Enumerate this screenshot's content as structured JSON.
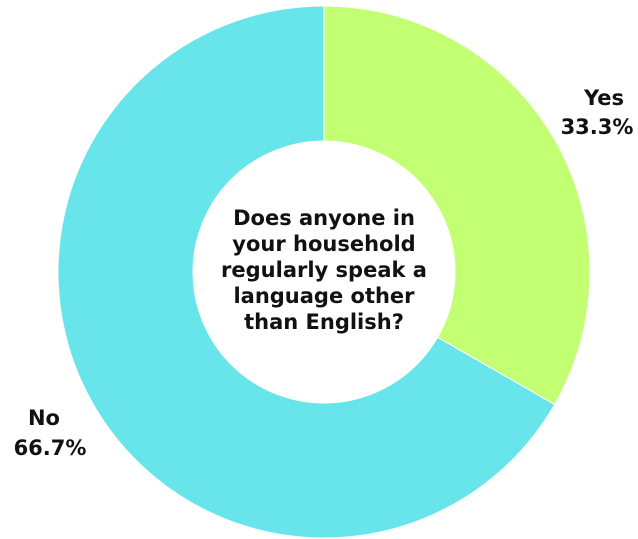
{
  "chart_data": {
    "type": "pie",
    "title": "Does anyone in your household regularly speak a language other than English?",
    "slices": [
      {
        "label": "Yes",
        "value": 33.3,
        "value_label": "33.3%",
        "color": "#c3ff73"
      },
      {
        "label": "No",
        "value": 66.7,
        "value_label": "66.7%",
        "color": "#67e5ea"
      }
    ],
    "donut": true,
    "legend": "none"
  }
}
